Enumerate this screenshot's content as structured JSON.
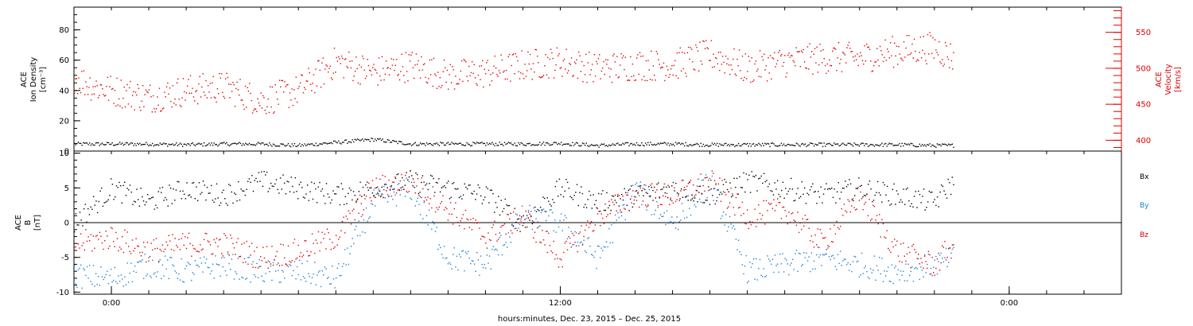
{
  "colors": {
    "black": "#000000",
    "red": "#e00000",
    "blue": "#1a7fd4"
  },
  "xaxis": {
    "label": "hours:minutes, Dec. 23, 2015 – Dec. 25, 2015",
    "range_hours": [
      -1,
      27
    ],
    "major_ticks": [
      {
        "hour": 0,
        "label": "0:00"
      },
      {
        "hour": 12,
        "label": "12:00"
      },
      {
        "hour": 24,
        "label": "0:00"
      }
    ],
    "minor_tick_hours": [
      -1,
      0,
      1,
      2,
      3,
      4,
      5,
      6,
      7,
      8,
      9,
      10,
      11,
      12,
      13,
      14,
      15,
      16,
      17,
      18,
      19,
      20,
      21,
      22,
      23,
      24,
      25,
      26,
      27
    ]
  },
  "chart_data": [
    {
      "type": "scatter",
      "panel": "top",
      "ylabel_left": [
        "ACE",
        "Ion Density",
        "[cm⁻³]"
      ],
      "ylabel_right": [
        "ACE",
        "Velocity",
        "[km/s]"
      ],
      "ylim_left": [
        0,
        95
      ],
      "ylim_right": [
        385,
        585
      ],
      "yticks_left": [
        0,
        20,
        40,
        60,
        80
      ],
      "yticks_right": [
        400,
        450,
        500,
        550
      ],
      "series": [
        {
          "name": "",
          "axis": "left",
          "color": "black",
          "x_hours": [
            -1,
            0,
            1,
            2,
            3,
            4,
            5,
            6,
            7,
            8,
            9,
            10,
            11,
            12,
            13,
            14,
            15,
            16,
            17,
            18,
            19,
            20,
            21,
            22,
            22.5
          ],
          "values": [
            5,
            5,
            5,
            4.5,
            5,
            5,
            4,
            6,
            8,
            5,
            5,
            5,
            5,
            5.5,
            4,
            5,
            5,
            4.5,
            4.5,
            4.5,
            4.5,
            4.5,
            4.5,
            4,
            4
          ]
        },
        {
          "name": "",
          "axis": "right",
          "color": "red",
          "x_hours": [
            -1,
            -0.5,
            0,
            1,
            2,
            3,
            4,
            5,
            6,
            7,
            8,
            9,
            10,
            11,
            12,
            13,
            14,
            15,
            16,
            17,
            18,
            19,
            20,
            21,
            22,
            22.5
          ],
          "values": [
            488,
            476,
            470,
            460,
            470,
            475,
            455,
            470,
            510,
            495,
            505,
            490,
            495,
            505,
            510,
            500,
            505,
            505,
            520,
            500,
            510,
            515,
            515,
            525,
            530,
            515
          ]
        }
      ]
    },
    {
      "type": "scatter",
      "panel": "bottom",
      "ylabel_left": [
        "ACE",
        "B",
        "[nT]"
      ],
      "ylim": [
        -10.3,
        10.3
      ],
      "yticks": [
        -10,
        -5,
        0,
        5,
        10
      ],
      "zero_line": true,
      "legend_placement": "right",
      "series": [
        {
          "name": "Bx",
          "color": "black",
          "x_hours": [
            -1,
            0,
            1,
            2,
            3,
            4,
            5,
            6,
            7,
            8,
            9,
            10,
            11,
            12,
            13,
            14,
            15,
            16,
            17,
            18,
            19,
            20,
            21,
            22,
            22.5
          ],
          "values": [
            0,
            5,
            3,
            5,
            4,
            6,
            5,
            4,
            5,
            6,
            5,
            4,
            0,
            5,
            3,
            4,
            5,
            4,
            6,
            5,
            4,
            5,
            4,
            3,
            6
          ]
        },
        {
          "name": "By",
          "color": "blue",
          "x_hours": [
            -1,
            0,
            1,
            2,
            3,
            4,
            5,
            6,
            7,
            8,
            9,
            10,
            11,
            12,
            13,
            14,
            15,
            16,
            17,
            18,
            19,
            20,
            21,
            22,
            22.5
          ],
          "values": [
            -7.5,
            -8,
            -6,
            -7,
            -6,
            -7,
            -7,
            -8,
            3,
            5,
            -5,
            -6,
            1,
            0,
            -5,
            5,
            0,
            6,
            -7,
            -6,
            -5,
            -6,
            -7,
            -6,
            -5
          ]
        },
        {
          "name": "Bz",
          "color": "red",
          "x_hours": [
            -1,
            0,
            1,
            2,
            3,
            4,
            5,
            6,
            7,
            8,
            9,
            10,
            11,
            12,
            13,
            14,
            15,
            16,
            17,
            18,
            19,
            20,
            21,
            22,
            22.5
          ],
          "values": [
            -3,
            -2,
            -4,
            -3,
            -3,
            -5,
            -4,
            -2,
            5,
            6,
            2,
            -2,
            1,
            -5,
            1,
            4,
            4,
            6,
            1,
            2,
            -3,
            4,
            -4,
            -6,
            -3
          ]
        }
      ]
    }
  ]
}
